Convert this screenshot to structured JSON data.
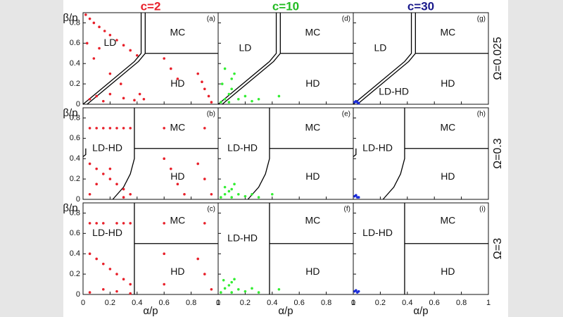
{
  "columns": [
    {
      "title": "c=2",
      "color": "#e8202a"
    },
    {
      "title": "c=10",
      "color": "#22bb22"
    },
    {
      "title": "c=30",
      "color": "#1a1a8c"
    }
  ],
  "rows": [
    "Ω=0.025",
    "Ω=0.3",
    "Ω=3"
  ],
  "chart_data": [
    {
      "type": "scatter",
      "label": "(a)",
      "ylabel": "β/p",
      "xlim": [
        0,
        1
      ],
      "ylim": [
        0,
        0.9
      ],
      "xticks": [
        0,
        0.2,
        0.4,
        0.6,
        0.8,
        1
      ],
      "yticks": [
        0,
        0.2,
        0.4,
        0.6,
        0.8
      ],
      "series": [
        {
          "color": "#e8202a",
          "x": [
            0.02,
            0.05,
            0.08,
            0.12,
            0.16,
            0.2,
            0.25,
            0.3,
            0.35,
            0.4,
            0.05,
            0.1,
            0.15,
            0.2,
            0.3,
            0.38,
            0.42,
            0.45,
            0.03,
            0.08,
            0.12,
            0.2,
            0.28,
            0.6,
            0.65,
            0.7,
            0.85,
            0.88,
            0.9,
            0.93,
            0.95
          ],
          "y": [
            0.88,
            0.84,
            0.8,
            0.76,
            0.72,
            0.68,
            0.63,
            0.58,
            0.53,
            0.48,
            0.05,
            0.08,
            0.03,
            0.1,
            0.06,
            0.04,
            0.1,
            0.05,
            0.6,
            0.45,
            0.55,
            0.3,
            0.2,
            0.45,
            0.35,
            0.25,
            0.3,
            0.22,
            0.15,
            0.08,
            0.02
          ]
        }
      ],
      "boundaries": [
        {
          "x": [
            0,
            0.38,
            0.43,
            0.43
          ],
          "y": [
            0,
            0.42,
            0.5,
            0.9
          ]
        },
        {
          "x": [
            0.03,
            0.41,
            0.46,
            0.46
          ],
          "y": [
            0,
            0.42,
            0.5,
            0.9
          ]
        },
        {
          "x": [
            0.46,
            1
          ],
          "y": [
            0.5,
            0.5
          ]
        }
      ],
      "annotations": [
        {
          "text": "LD",
          "x": 0.2,
          "y": 0.6
        },
        {
          "text": "MC",
          "x": 0.7,
          "y": 0.7
        },
        {
          "text": "HD",
          "x": 0.7,
          "y": 0.2
        }
      ]
    },
    {
      "type": "scatter",
      "label": "(b)",
      "ylabel": "β/p",
      "xlim": [
        0,
        1
      ],
      "ylim": [
        0,
        0.9
      ],
      "xticks": [
        0,
        0.2,
        0.4,
        0.6,
        0.8,
        1
      ],
      "yticks": [
        0,
        0.2,
        0.4,
        0.6,
        0.8
      ],
      "series": [
        {
          "color": "#e8202a",
          "x": [
            0.05,
            0.1,
            0.15,
            0.2,
            0.25,
            0.3,
            0.35,
            0.6,
            0.9,
            0.05,
            0.1,
            0.15,
            0.2,
            0.25,
            0.3,
            0.35,
            0.05,
            0.1,
            0.2,
            0.3,
            0.6,
            0.65,
            0.7,
            0.75,
            0.85,
            0.9,
            0.95
          ],
          "y": [
            0.7,
            0.7,
            0.7,
            0.7,
            0.7,
            0.7,
            0.7,
            0.7,
            0.7,
            0.35,
            0.3,
            0.25,
            0.2,
            0.15,
            0.1,
            0.05,
            0.05,
            0.15,
            0.3,
            0.02,
            0.4,
            0.3,
            0.15,
            0.05,
            0.35,
            0.2,
            0.05
          ]
        }
      ],
      "boundaries": [
        {
          "x": [
            0.22,
            0.3,
            0.35,
            0.38,
            0.38
          ],
          "y": [
            0,
            0.12,
            0.25,
            0.4,
            0.9
          ]
        },
        {
          "x": [
            0.38,
            1
          ],
          "y": [
            0.5,
            0.5
          ]
        },
        {
          "x": [
            0,
            0.02,
            0.02
          ],
          "y": [
            0.42,
            0.44,
            0.5
          ]
        }
      ],
      "annotations": [
        {
          "text": "LD-HD",
          "x": 0.18,
          "y": 0.5
        },
        {
          "text": "MC",
          "x": 0.7,
          "y": 0.7
        },
        {
          "text": "HD",
          "x": 0.7,
          "y": 0.22
        }
      ]
    },
    {
      "type": "scatter",
      "label": "(c)",
      "ylabel": "β/p",
      "xlabel": "α/p",
      "xlim": [
        0,
        1
      ],
      "ylim": [
        0,
        0.9
      ],
      "xticks": [
        0,
        0.2,
        0.4,
        0.6,
        0.8,
        1
      ],
      "yticks": [
        0,
        0.2,
        0.4,
        0.6,
        0.8
      ],
      "series": [
        {
          "color": "#e8202a",
          "x": [
            0.05,
            0.1,
            0.15,
            0.25,
            0.3,
            0.35,
            0.6,
            0.9,
            0.05,
            0.1,
            0.15,
            0.2,
            0.25,
            0.3,
            0.35,
            0.05,
            0.15,
            0.25,
            0.35,
            0.6,
            0.6,
            0.85,
            0.9,
            0.95
          ],
          "y": [
            0.7,
            0.7,
            0.7,
            0.7,
            0.7,
            0.7,
            0.7,
            0.7,
            0.4,
            0.35,
            0.3,
            0.25,
            0.2,
            0.15,
            0.1,
            0.02,
            0.05,
            0.03,
            0.01,
            0.4,
            0.1,
            0.35,
            0.2,
            0.05
          ]
        }
      ],
      "boundaries": [
        {
          "x": [
            0.38,
            0.38
          ],
          "y": [
            0,
            0.9
          ]
        },
        {
          "x": [
            0.38,
            1
          ],
          "y": [
            0.5,
            0.5
          ]
        }
      ],
      "annotations": [
        {
          "text": "LD-HD",
          "x": 0.18,
          "y": 0.6
        },
        {
          "text": "MC",
          "x": 0.7,
          "y": 0.72
        },
        {
          "text": "HD",
          "x": 0.7,
          "y": 0.22
        }
      ]
    },
    {
      "type": "scatter",
      "label": "(d)",
      "xlim": [
        0,
        1
      ],
      "ylim": [
        0,
        0.9
      ],
      "xticks": [
        0,
        0.2,
        0.4,
        0.6,
        0.8,
        1
      ],
      "yticks": [
        0,
        0.2,
        0.4,
        0.6,
        0.8
      ],
      "series": [
        {
          "color": "#33ee33",
          "x": [
            0.02,
            0.05,
            0.08,
            0.1,
            0.12,
            0.05,
            0.08,
            0.15,
            0.2,
            0.25,
            0.3,
            0.45,
            0.03,
            0.1
          ],
          "y": [
            0.02,
            0.05,
            0.1,
            0.15,
            0.3,
            0.35,
            0.02,
            0.05,
            0.08,
            0.03,
            0.05,
            0.08,
            0.2,
            0.25
          ]
        }
      ],
      "boundaries": [
        {
          "x": [
            0,
            0.38,
            0.43,
            0.43
          ],
          "y": [
            0,
            0.42,
            0.5,
            0.9
          ]
        },
        {
          "x": [
            0.03,
            0.41,
            0.46,
            0.46
          ],
          "y": [
            0,
            0.42,
            0.5,
            0.9
          ]
        },
        {
          "x": [
            0.46,
            1
          ],
          "y": [
            0.5,
            0.5
          ]
        }
      ],
      "annotations": [
        {
          "text": "LD",
          "x": 0.2,
          "y": 0.55
        },
        {
          "text": "MC",
          "x": 0.7,
          "y": 0.7
        },
        {
          "text": "HD",
          "x": 0.7,
          "y": 0.2
        }
      ]
    },
    {
      "type": "scatter",
      "label": "(e)",
      "xlim": [
        0,
        1
      ],
      "ylim": [
        0,
        0.9
      ],
      "xticks": [
        0,
        0.2,
        0.4,
        0.6,
        0.8,
        1
      ],
      "yticks": [
        0,
        0.2,
        0.4,
        0.6,
        0.8
      ],
      "series": [
        {
          "color": "#33ee33",
          "x": [
            0.02,
            0.05,
            0.08,
            0.1,
            0.12,
            0.15,
            0.2,
            0.25,
            0.3,
            0.4,
            0.05,
            0.1
          ],
          "y": [
            0.02,
            0.05,
            0.08,
            0.1,
            0.15,
            0.05,
            0.03,
            0.05,
            0.02,
            0.05,
            0.12,
            0.02
          ]
        }
      ],
      "boundaries": [
        {
          "x": [
            0.22,
            0.3,
            0.35,
            0.38,
            0.38
          ],
          "y": [
            0,
            0.12,
            0.25,
            0.4,
            0.9
          ]
        },
        {
          "x": [
            0.38,
            1
          ],
          "y": [
            0.5,
            0.5
          ]
        }
      ],
      "annotations": [
        {
          "text": "LD-HD",
          "x": 0.18,
          "y": 0.5
        },
        {
          "text": "MC",
          "x": 0.7,
          "y": 0.7
        },
        {
          "text": "HD",
          "x": 0.7,
          "y": 0.22
        }
      ]
    },
    {
      "type": "scatter",
      "label": "(f)",
      "xlabel": "α/p",
      "xlim": [
        0,
        1
      ],
      "ylim": [
        0,
        0.9
      ],
      "xticks": [
        0,
        0.2,
        0.4,
        0.6,
        0.8,
        1
      ],
      "yticks": [
        0,
        0.2,
        0.4,
        0.6,
        0.8
      ],
      "series": [
        {
          "color": "#33ee33",
          "x": [
            0.02,
            0.05,
            0.08,
            0.1,
            0.12,
            0.15,
            0.2,
            0.25,
            0.3,
            0.45,
            0.04,
            0.1
          ],
          "y": [
            0.02,
            0.06,
            0.09,
            0.12,
            0.15,
            0.05,
            0.03,
            0.06,
            0.02,
            0.05,
            0.14,
            0.02
          ]
        }
      ],
      "boundaries": [
        {
          "x": [
            0.38,
            0.38
          ],
          "y": [
            0,
            0.9
          ]
        },
        {
          "x": [
            0.38,
            1
          ],
          "y": [
            0.5,
            0.5
          ]
        }
      ],
      "annotations": [
        {
          "text": "LD-HD",
          "x": 0.18,
          "y": 0.55
        },
        {
          "text": "MC",
          "x": 0.7,
          "y": 0.72
        },
        {
          "text": "HD",
          "x": 0.7,
          "y": 0.22
        }
      ]
    },
    {
      "type": "scatter",
      "label": "(g)",
      "xlim": [
        0,
        1
      ],
      "ylim": [
        0,
        0.9
      ],
      "xticks": [
        0,
        0.2,
        0.4,
        0.6,
        0.8,
        1
      ],
      "yticks": [
        0,
        0.2,
        0.4,
        0.6,
        0.8
      ],
      "series": [
        {
          "color": "#1a2bd8",
          "x": [
            0.01,
            0.02,
            0.03,
            0.04
          ],
          "y": [
            0.02,
            0.03,
            0.02,
            0.01
          ]
        }
      ],
      "boundaries": [
        {
          "x": [
            0,
            0.38,
            0.43,
            0.43
          ],
          "y": [
            0,
            0.42,
            0.5,
            0.9
          ]
        },
        {
          "x": [
            0.03,
            0.41,
            0.46,
            0.46
          ],
          "y": [
            0,
            0.42,
            0.5,
            0.9
          ]
        },
        {
          "x": [
            0.46,
            1
          ],
          "y": [
            0.5,
            0.5
          ]
        }
      ],
      "annotations": [
        {
          "text": "LD",
          "x": 0.2,
          "y": 0.55
        },
        {
          "text": "MC",
          "x": 0.7,
          "y": 0.7
        },
        {
          "text": "HD",
          "x": 0.7,
          "y": 0.2
        },
        {
          "text": "LD-HD",
          "x": 0.3,
          "y": 0.12
        }
      ]
    },
    {
      "type": "scatter",
      "label": "(h)",
      "xlim": [
        0,
        1
      ],
      "ylim": [
        0,
        0.9
      ],
      "xticks": [
        0,
        0.2,
        0.4,
        0.6,
        0.8,
        1
      ],
      "yticks": [
        0,
        0.2,
        0.4,
        0.6,
        0.8
      ],
      "series": [
        {
          "color": "#1a2bd8",
          "x": [
            0.01,
            0.02,
            0.03,
            0.04
          ],
          "y": [
            0.03,
            0.04,
            0.02,
            0.02
          ]
        }
      ],
      "boundaries": [
        {
          "x": [
            0.22,
            0.3,
            0.35,
            0.38,
            0.38
          ],
          "y": [
            0,
            0.12,
            0.25,
            0.4,
            0.9
          ]
        },
        {
          "x": [
            0.38,
            1
          ],
          "y": [
            0.5,
            0.5
          ]
        },
        {
          "x": [
            0,
            0.02,
            0.02
          ],
          "y": [
            0.42,
            0.44,
            0.5
          ]
        }
      ],
      "annotations": [
        {
          "text": "LD-HD",
          "x": 0.18,
          "y": 0.5
        },
        {
          "text": "MC",
          "x": 0.7,
          "y": 0.7
        },
        {
          "text": "HD",
          "x": 0.7,
          "y": 0.22
        }
      ]
    },
    {
      "type": "scatter",
      "label": "(i)",
      "xlabel": "α/p",
      "xlim": [
        0,
        1
      ],
      "ylim": [
        0,
        0.9
      ],
      "xticks": [
        0,
        0.2,
        0.4,
        0.6,
        0.8,
        1
      ],
      "yticks": [
        0,
        0.2,
        0.4,
        0.6,
        0.8
      ],
      "series": [
        {
          "color": "#1a2bd8",
          "x": [
            0.01,
            0.02,
            0.03,
            0.04
          ],
          "y": [
            0.03,
            0.04,
            0.02,
            0.03
          ]
        }
      ],
      "boundaries": [
        {
          "x": [
            0.38,
            0.38
          ],
          "y": [
            0,
            0.9
          ]
        },
        {
          "x": [
            0.38,
            1
          ],
          "y": [
            0.5,
            0.5
          ]
        }
      ],
      "annotations": [
        {
          "text": "LD-HD",
          "x": 0.18,
          "y": 0.6
        },
        {
          "text": "MC",
          "x": 0.7,
          "y": 0.72
        },
        {
          "text": "HD",
          "x": 0.7,
          "y": 0.22
        }
      ]
    }
  ]
}
